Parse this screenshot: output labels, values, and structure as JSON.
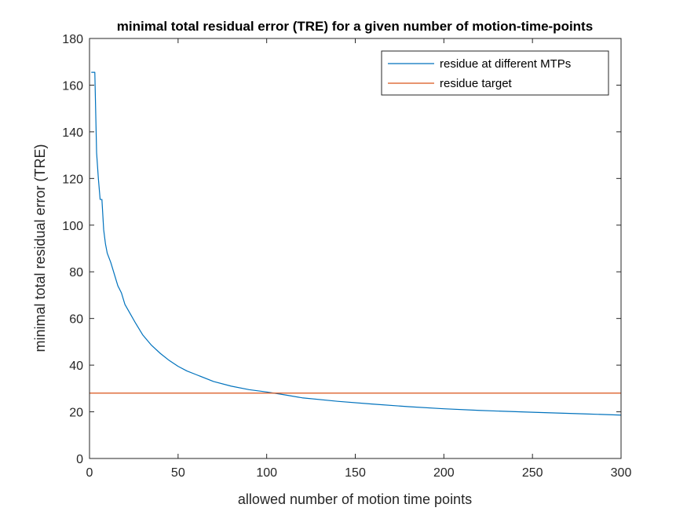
{
  "chart_data": {
    "type": "line",
    "title": "minimal total residual error (TRE) for a given number of motion-time-points",
    "xlabel": "allowed number of motion time points",
    "ylabel": "minimal total residual error (TRE)",
    "xlim": [
      0,
      300
    ],
    "ylim": [
      0,
      180
    ],
    "xticks": [
      0,
      50,
      100,
      150,
      200,
      250,
      300
    ],
    "yticks": [
      0,
      20,
      40,
      60,
      80,
      100,
      120,
      140,
      160,
      180
    ],
    "grid": false,
    "legend_position": "top-right",
    "series": [
      {
        "name": "residue at different MTPs",
        "color": "#0072BD",
        "x": [
          1,
          2,
          3,
          4,
          5,
          6,
          7,
          8,
          9,
          10,
          12,
          14,
          16,
          18,
          20,
          23,
          26,
          30,
          35,
          40,
          45,
          50,
          55,
          60,
          70,
          80,
          90,
          100,
          110,
          120,
          140,
          160,
          180,
          200,
          220,
          250,
          280,
          300
        ],
        "y": [
          165.5,
          165.5,
          165.5,
          131,
          120,
          111,
          111,
          98,
          92,
          88,
          84,
          79,
          74,
          71,
          66,
          62,
          58,
          53,
          48.5,
          45,
          42,
          39.5,
          37.5,
          36,
          33,
          31,
          29.5,
          28.5,
          27.3,
          26,
          24.5,
          23.3,
          22.2,
          21.3,
          20.6,
          19.8,
          19.1,
          18.6
        ]
      },
      {
        "name": "residue target",
        "color": "#D95319",
        "x": [
          0,
          300
        ],
        "y": [
          28,
          28
        ]
      }
    ]
  }
}
